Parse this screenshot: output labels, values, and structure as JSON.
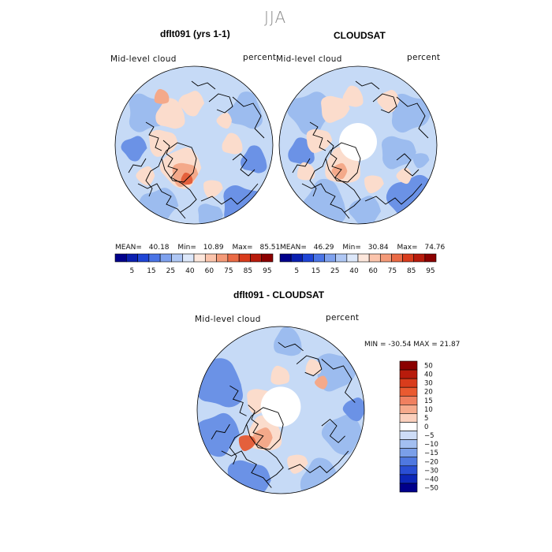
{
  "page_title": "JJA",
  "panels": [
    {
      "id": "model",
      "title": "dflt091 (yrs 1-1)",
      "field_label": "Mid-level cloud",
      "units_label": "percent",
      "stats": {
        "mean_label": "MEAN=",
        "mean": "40.18",
        "min_label": "Min=",
        "min": "10.89",
        "max_label": "Max=",
        "max": "85.51"
      },
      "pole_hole": false
    },
    {
      "id": "obs",
      "title": "CLOUDSAT",
      "field_label": "Mid-level cloud",
      "units_label": "percent",
      "stats": {
        "mean_label": "MEAN=",
        "mean": "46.29",
        "min_label": "Min=",
        "min": "30.84",
        "max_label": "Max=",
        "max": "74.76"
      },
      "pole_hole": true
    },
    {
      "id": "diff",
      "title": "dflt091 - CLOUDSAT",
      "field_label": "Mid-level cloud",
      "units_label": "percent",
      "minmax_text": "MIN = -30.54 MAX =  21.87",
      "pole_hole": true
    }
  ],
  "colorbar_horizontal": {
    "ticks": [
      "5",
      "15",
      "25",
      "40",
      "60",
      "75",
      "85",
      "95"
    ],
    "colors": [
      "#00008b",
      "#0a1fb0",
      "#1f45d6",
      "#4a74e6",
      "#7ea1ee",
      "#afc7f4",
      "#dde8fa",
      "#fde7dc",
      "#fbc4ac",
      "#f49a78",
      "#ea6a45",
      "#d93c1c",
      "#b81b0c",
      "#8b0000"
    ]
  },
  "colorbar_vertical": {
    "ticks": [
      "50",
      "40",
      "30",
      "20",
      "15",
      "10",
      "5",
      "0",
      "−5",
      "−10",
      "−15",
      "−20",
      "−30",
      "−40",
      "−50"
    ],
    "colors": [
      "#8b0000",
      "#b81b0c",
      "#d93c1c",
      "#ea5a30",
      "#f08060",
      "#f6aa8c",
      "#fbd0bd",
      "#ffffff",
      "#cddcf6",
      "#a3bff1",
      "#7a9fe9",
      "#4f78e0",
      "#2a4fd4",
      "#0d27b8",
      "#00008b"
    ]
  },
  "colors": {
    "ocean_base": "#c6daf6",
    "ocean_mid": "#9cbcef",
    "ocean_deep": "#6b92e6",
    "warm_light": "#fbdccc",
    "warm_mid": "#f4a98a",
    "warm_strong": "#e4603c",
    "pole_hole": "#ffffff",
    "coast": "#000000"
  }
}
